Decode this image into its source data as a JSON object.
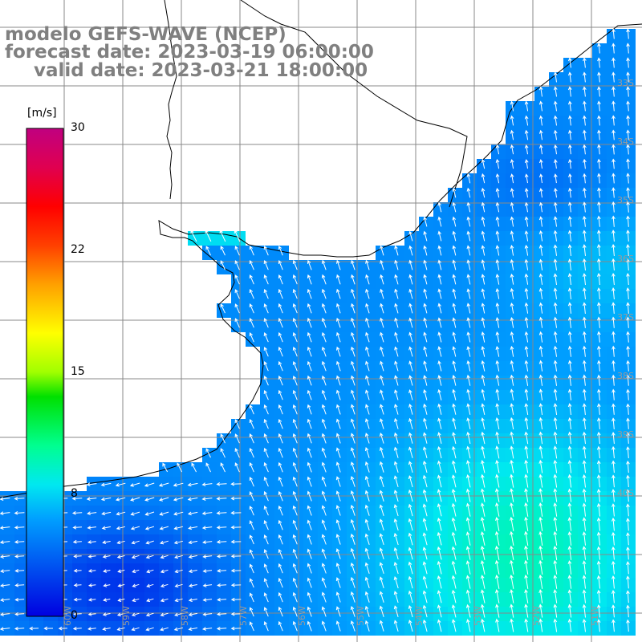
{
  "header": {
    "line1": "modelo GEFS-WAVE (NCEP)",
    "line2": "forecast date: 2023-03-19 06:00:00",
    "line3": "valid date: 2023-03-21 18:00:00"
  },
  "colorbar": {
    "units": "[m/s]",
    "ticks": [
      "30",
      "22",
      "15",
      "8",
      "0"
    ],
    "tick_values": [
      30,
      22,
      15,
      8,
      0
    ],
    "min": 0,
    "max": 30,
    "colors": [
      "#0000e0",
      "#0060f0",
      "#00b0ff",
      "#00e0e8",
      "#00ff80",
      "#00e000",
      "#c0ff00",
      "#ffff00",
      "#ffa000",
      "#ff4000",
      "#ff0000",
      "#e00060",
      "#c00080"
    ]
  },
  "map": {
    "lon_labels": [
      "60W",
      "59W",
      "58W",
      "57W",
      "56W",
      "55W",
      "54W",
      "53W",
      "52W",
      "51W"
    ],
    "lat_labels": [
      "33S",
      "34S",
      "35S",
      "36S",
      "37S",
      "38S",
      "39S",
      "40S"
    ],
    "land_color": "#ffffff",
    "grid_color": "#888888",
    "arrow_color": "#ffffff"
  }
}
